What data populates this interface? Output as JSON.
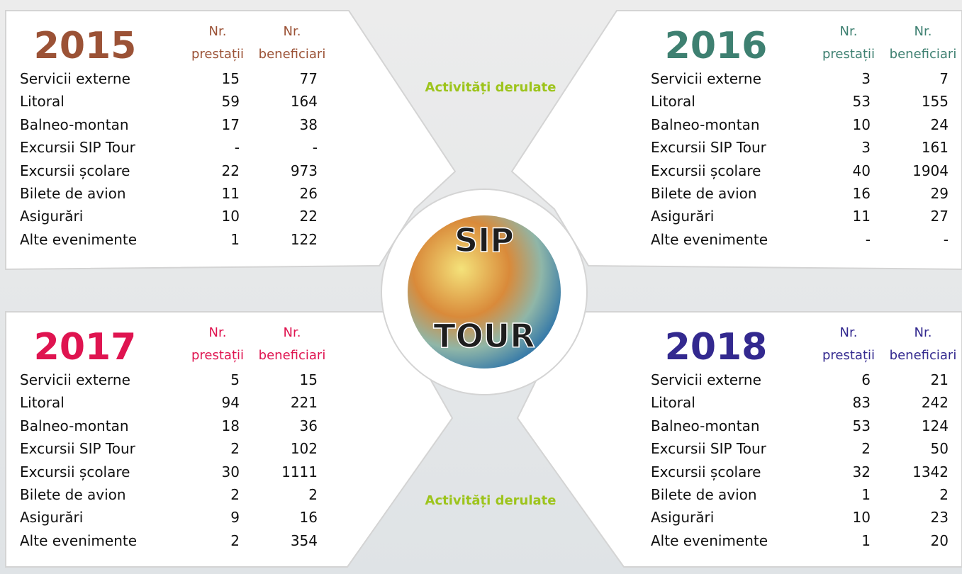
{
  "panels": [
    {
      "year": "2015",
      "color": "#9b5236",
      "headers": [
        [
          "Nr.",
          "prestații"
        ],
        [
          "Nr.",
          "beneficiari"
        ]
      ],
      "rows": [
        [
          "Servicii externe",
          15,
          77
        ],
        [
          "Litoral",
          59,
          164
        ],
        [
          "Balneo-montan",
          17,
          38
        ],
        [
          "Excursii SIP Tour",
          "-",
          "-"
        ],
        [
          "Excursii școlare",
          22,
          973
        ],
        [
          "Bilete de avion",
          11,
          26
        ],
        [
          "Asigurări",
          10,
          22
        ],
        [
          "Alte evenimente",
          1,
          122
        ]
      ]
    },
    {
      "year": "2016",
      "color": "#3e8071",
      "headers": [
        [
          "Nr.",
          "prestații"
        ],
        [
          "Nr.",
          "beneficiari"
        ]
      ],
      "rows": [
        [
          "Servicii externe",
          3,
          7
        ],
        [
          "Litoral",
          53,
          155
        ],
        [
          "Balneo-montan",
          10,
          24
        ],
        [
          "Excursii SIP Tour",
          3,
          161
        ],
        [
          "Excursii școlare",
          40,
          1904
        ],
        [
          "Bilete de avion",
          16,
          29
        ],
        [
          "Asigurări",
          11,
          27
        ],
        [
          "Alte evenimente",
          "-",
          "-"
        ]
      ]
    },
    {
      "year": "2017",
      "color": "#df1450",
      "headers": [
        [
          "Nr.",
          "prestații"
        ],
        [
          "Nr.",
          "beneficiari"
        ]
      ],
      "rows": [
        [
          "Servicii externe",
          5,
          15
        ],
        [
          "Litoral",
          94,
          221
        ],
        [
          "Balneo-montan",
          18,
          36
        ],
        [
          "Excursii SIP Tour",
          2,
          102
        ],
        [
          "Excursii școlare",
          30,
          1111
        ],
        [
          "Bilete de avion",
          2,
          2
        ],
        [
          "Asigurări",
          9,
          16
        ],
        [
          "Alte evenimente",
          2,
          354
        ]
      ]
    },
    {
      "year": "2018",
      "color": "#33298f",
      "headers": [
        [
          "Nr.",
          "prestații"
        ],
        [
          "Nr.",
          "beneficiari"
        ]
      ],
      "rows": [
        [
          "Servicii externe",
          6,
          21
        ],
        [
          "Litoral",
          83,
          242
        ],
        [
          "Balneo-montan",
          53,
          124
        ],
        [
          "Excursii SIP Tour",
          2,
          50
        ],
        [
          "Excursii școlare",
          32,
          1342
        ],
        [
          "Bilete de avion",
          1,
          2
        ],
        [
          "Asigurări",
          10,
          23
        ],
        [
          "Alte evenimente",
          1,
          20
        ]
      ]
    }
  ],
  "center": {
    "label_top": "Activități derulate",
    "label_bottom": "Activități derulate",
    "logo": [
      "SIP",
      "TOUR"
    ]
  }
}
